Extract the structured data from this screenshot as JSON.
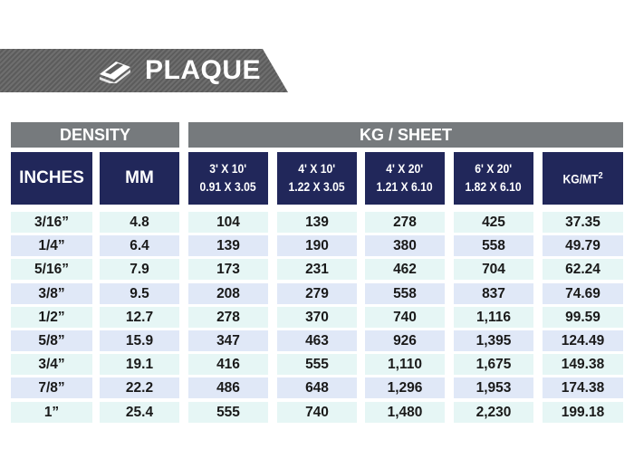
{
  "banner": {
    "title": "PLAQUE",
    "icon": "sheet-stack-icon"
  },
  "groups": {
    "density": "DENSITY",
    "kg_sheet": "KG / SHEET"
  },
  "columns": [
    {
      "line1": "INCHES",
      "line2": ""
    },
    {
      "line1": "MM",
      "line2": ""
    },
    {
      "line1": "3' X 10'",
      "line2": "0.91 X 3.05"
    },
    {
      "line1": "4' X 10'",
      "line2": "1.22 X 3.05"
    },
    {
      "line1": "4' X 20'",
      "line2": "1.21 X 6.10"
    },
    {
      "line1": "6' X 20'",
      "line2": "1.82 X 6.10"
    },
    {
      "line1": "KG/MT",
      "sup": "2"
    }
  ],
  "rows": [
    [
      "3/16”",
      "4.8",
      "104",
      "139",
      "278",
      "425",
      "37.35"
    ],
    [
      "1/4”",
      "6.4",
      "139",
      "190",
      "380",
      "558",
      "49.79"
    ],
    [
      "5/16”",
      "7.9",
      "173",
      "231",
      "462",
      "704",
      "62.24"
    ],
    [
      "3/8”",
      "9.5",
      "208",
      "279",
      "558",
      "837",
      "74.69"
    ],
    [
      "1/2”",
      "12.7",
      "278",
      "370",
      "740",
      "1,116",
      "99.59"
    ],
    [
      "5/8”",
      "15.9",
      "347",
      "463",
      "926",
      "1,395",
      "124.49"
    ],
    [
      "3/4”",
      "19.1",
      "416",
      "555",
      "1,110",
      "1,675",
      "149.38"
    ],
    [
      "7/8”",
      "22.2",
      "486",
      "648",
      "1,296",
      "1,953",
      "174.38"
    ],
    [
      "1”",
      "25.4",
      "555",
      "740",
      "1,480",
      "2,230",
      "199.18"
    ]
  ]
}
